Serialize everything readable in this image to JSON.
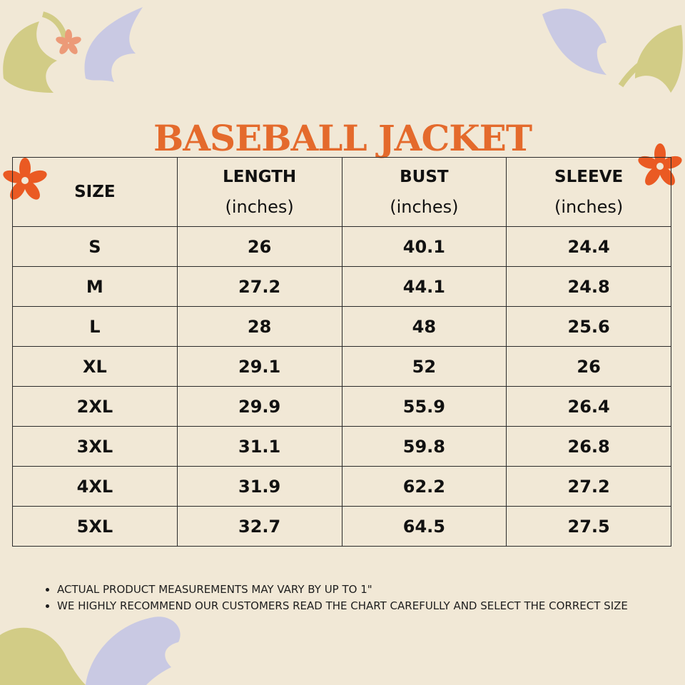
{
  "title": "BASEBALL JACKET",
  "table": {
    "headers": [
      {
        "label": "SIZE",
        "unit": ""
      },
      {
        "label": "LENGTH",
        "unit": "(inches)"
      },
      {
        "label": "BUST",
        "unit": "(inches)"
      },
      {
        "label": "SLEEVE",
        "unit": "(inches)"
      }
    ],
    "rows": [
      [
        "S",
        "26",
        "40.1",
        "24.4"
      ],
      [
        "M",
        "27.2",
        "44.1",
        "24.8"
      ],
      [
        "L",
        "28",
        "48",
        "25.6"
      ],
      [
        "XL",
        "29.1",
        "52",
        "26"
      ],
      [
        "2XL",
        "29.9",
        "55.9",
        "26.4"
      ],
      [
        "3XL",
        "31.1",
        "59.8",
        "26.8"
      ],
      [
        "4XL",
        "31.9",
        "62.2",
        "27.2"
      ],
      [
        "5XL",
        "32.7",
        "64.5",
        "27.5"
      ]
    ]
  },
  "notes": [
    "ACTUAL PRODUCT MEASUREMENTS MAY VARY BY UP TO 1\"",
    "WE HIGHLY RECOMMEND OUR CUSTOMERS READ THE CHART CAREFULLY AND SELECT THE CORRECT SIZE"
  ],
  "colors": {
    "background": "#f1e8d6",
    "title": "#e46a2c",
    "flower": "#ea5a23",
    "leaf_olive": "#d2cc86",
    "leaf_lavender": "#c9c9e3",
    "border": "#2b2b2b"
  }
}
